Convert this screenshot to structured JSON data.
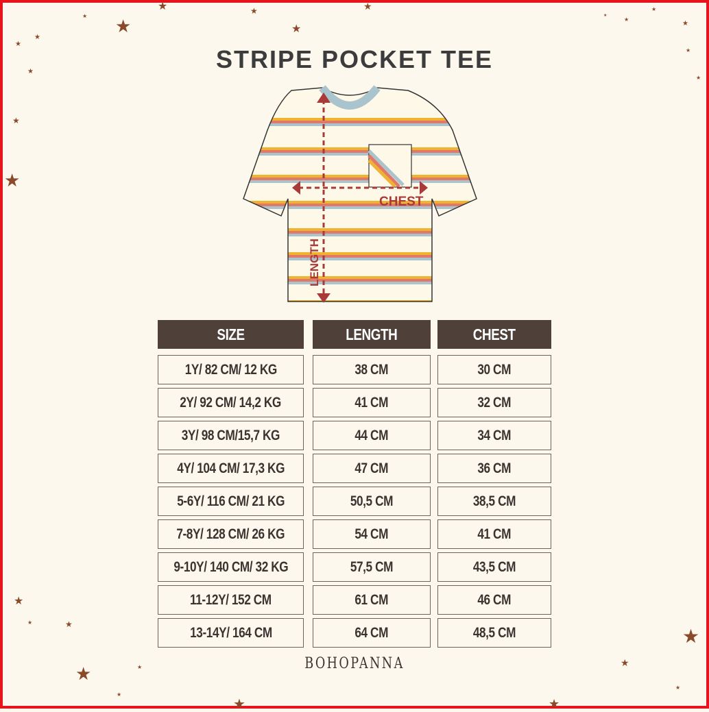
{
  "title": "STRIPE POCKET TEE",
  "diagram": {
    "chest_label": "CHEST",
    "length_label": "LENGTH"
  },
  "colors": {
    "header_bg": "#4f4039",
    "border": "#e8141c",
    "measure": "#a83a3a",
    "stripe_yellow": "#f0b32f",
    "stripe_coral": "#e0796a",
    "stripe_blue": "#a9c4cc"
  },
  "table": {
    "headers": [
      "SIZE",
      "LENGTH",
      "CHEST"
    ],
    "rows": [
      [
        "1Y/ 82 CM/ 12 KG",
        "38 CM",
        "30 CM"
      ],
      [
        "2Y/ 92 CM/ 14,2 KG",
        "41 CM",
        "32 CM"
      ],
      [
        "3Y/ 98 CM/15,7 KG",
        "44 CM",
        "34 CM"
      ],
      [
        "4Y/ 104 CM/ 17,3 KG",
        "47 CM",
        "36 CM"
      ],
      [
        "5-6Y/ 116 CM/ 21 KG",
        "50,5 CM",
        "38,5 CM"
      ],
      [
        "7-8Y/ 128 CM/ 26 KG",
        "54 CM",
        "41 CM"
      ],
      [
        "9-10Y/ 140 CM/ 32 KG",
        "57,5 CM",
        "43,5 CM"
      ],
      [
        "11-12Y/ 152 CM",
        "61 CM",
        "46 CM"
      ],
      [
        "13-14Y/ 164 CM",
        "64 CM",
        "48,5 CM"
      ]
    ]
  },
  "brand": "BOHOPANNA"
}
